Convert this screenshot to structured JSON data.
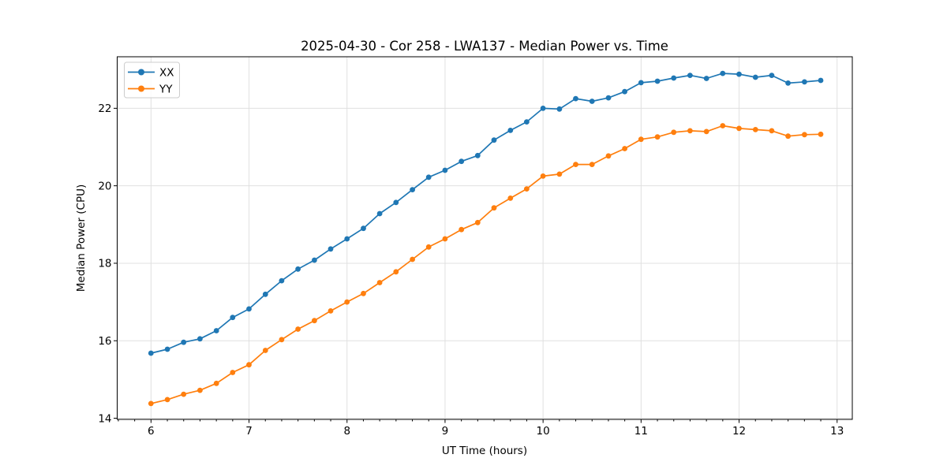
{
  "page": {
    "background": "#ffffff"
  },
  "chart_data": {
    "type": "line",
    "title": "2025-04-30 - Cor 258 - LWA137 - Median Power vs. Time",
    "xlabel": "UT Time (hours)",
    "ylabel": "Median Power (CPU)",
    "xlim": [
      5.655,
      13.155
    ],
    "ylim": [
      13.97,
      23.33
    ],
    "xticks": [
      6,
      7,
      8,
      9,
      10,
      11,
      12,
      13
    ],
    "xtick_labels": [
      "6",
      "7",
      "8",
      "9",
      "10",
      "11",
      "12",
      "13"
    ],
    "yticks": [
      14,
      16,
      18,
      20,
      22
    ],
    "ytick_labels": [
      "14",
      "16",
      "18",
      "20",
      "22"
    ],
    "x_minor_step": 0.1667,
    "grid": true,
    "grid_color": "#e0e0e0",
    "legend_position": "upper left",
    "marker": "circle",
    "x": [
      6.0,
      6.167,
      6.333,
      6.5,
      6.667,
      6.833,
      7.0,
      7.167,
      7.333,
      7.5,
      7.667,
      7.833,
      8.0,
      8.167,
      8.333,
      8.5,
      8.667,
      8.833,
      9.0,
      9.167,
      9.333,
      9.5,
      9.667,
      9.833,
      10.0,
      10.167,
      10.333,
      10.5,
      10.667,
      10.833,
      11.0,
      11.167,
      11.333,
      11.5,
      11.667,
      11.833,
      12.0,
      12.167,
      12.333,
      12.5,
      12.667,
      12.833
    ],
    "series": [
      {
        "name": "XX",
        "color": "#1f77b4",
        "values": [
          15.68,
          15.78,
          15.96,
          16.05,
          16.26,
          16.6,
          16.82,
          17.2,
          17.55,
          17.85,
          18.08,
          18.37,
          18.63,
          18.9,
          19.28,
          19.57,
          19.9,
          20.22,
          20.4,
          20.63,
          20.78,
          21.18,
          21.43,
          21.65,
          22.0,
          21.98,
          22.25,
          22.18,
          22.27,
          22.43,
          22.66,
          22.7,
          22.78,
          22.85,
          22.77,
          22.9,
          22.88,
          22.8,
          22.85,
          22.65,
          22.68,
          22.72
        ]
      },
      {
        "name": "YY",
        "color": "#ff7f0e",
        "values": [
          14.38,
          14.48,
          14.62,
          14.72,
          14.9,
          15.18,
          15.38,
          15.75,
          16.03,
          16.3,
          16.52,
          16.77,
          17.0,
          17.22,
          17.5,
          17.78,
          18.1,
          18.42,
          18.63,
          18.87,
          19.05,
          19.43,
          19.68,
          19.92,
          20.25,
          20.3,
          20.55,
          20.55,
          20.77,
          20.96,
          21.2,
          21.26,
          21.38,
          21.42,
          21.4,
          21.55,
          21.48,
          21.45,
          21.42,
          21.28,
          21.32,
          21.33
        ]
      }
    ]
  }
}
